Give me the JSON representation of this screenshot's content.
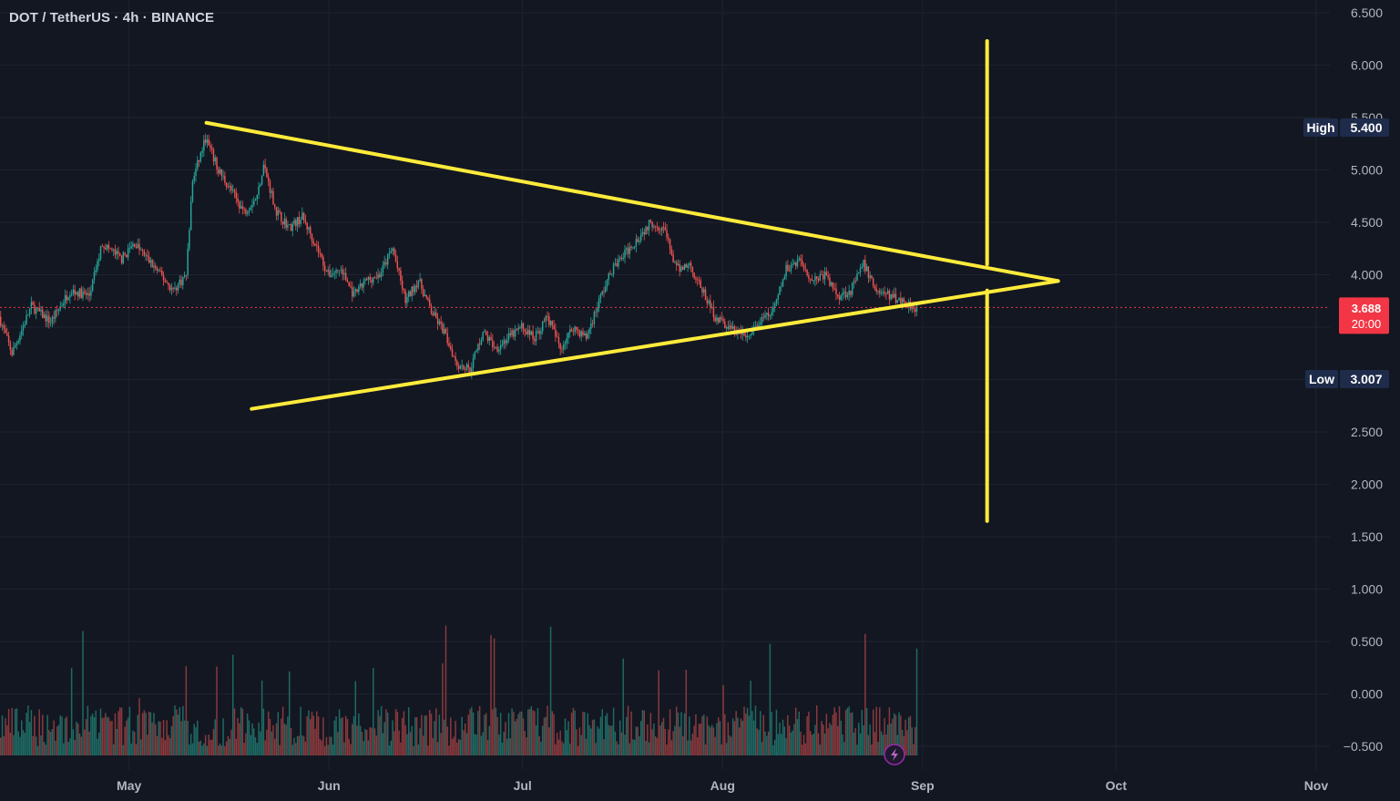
{
  "header": {
    "title": "DOT / TetherUS · 4h · BINANCE"
  },
  "colors": {
    "background": "#131722",
    "grid": "#1f2330",
    "up": "#26a69a",
    "down": "#ef5350",
    "up_volume": "#1f6b64",
    "down_volume": "#8a3a3d",
    "drawing": "#ffeb3b",
    "badge": "#1e2b4a",
    "last_price": "#f23645",
    "axis_text": "#b2b5be"
  },
  "icons": {
    "lightning": "lightning-icon"
  },
  "chart_data": {
    "type": "candlestick",
    "title": "DOT / TetherUS · 4h · BINANCE",
    "y_axis": {
      "ticks": [
        "6.500",
        "6.000",
        "5.500",
        "5.000",
        "4.500",
        "4.000",
        "3.500",
        "3.000",
        "2.500",
        "2.000",
        "1.500",
        "1.000",
        "0.500",
        "0.000",
        "−0.500"
      ],
      "ylim": [
        -0.6,
        6.6
      ]
    },
    "x_axis": {
      "ticks": [
        "May",
        "Jun",
        "Jul",
        "Aug",
        "Sep",
        "Oct",
        "Nov"
      ],
      "range": [
        "2024-04-11",
        "2024-11-14"
      ]
    },
    "high": {
      "label": "High",
      "value": "5.400"
    },
    "low": {
      "label": "Low",
      "value": "3.007"
    },
    "last": {
      "value": "3.688",
      "countdown": "20:00"
    },
    "price_path": [
      [
        "2024-04-11",
        3.6
      ],
      [
        "2024-04-13",
        3.25
      ],
      [
        "2024-04-16",
        3.7
      ],
      [
        "2024-04-19",
        3.55
      ],
      [
        "2024-04-22",
        3.85
      ],
      [
        "2024-04-25",
        3.8
      ],
      [
        "2024-04-27",
        4.3
      ],
      [
        "2024-04-30",
        4.15
      ],
      [
        "2024-05-02",
        4.3
      ],
      [
        "2024-05-04",
        4.15
      ],
      [
        "2024-05-06",
        4.0
      ],
      [
        "2024-05-08",
        3.85
      ],
      [
        "2024-05-10",
        4.0
      ],
      [
        "2024-05-11",
        4.9
      ],
      [
        "2024-05-13",
        5.3
      ],
      [
        "2024-05-15",
        5.0
      ],
      [
        "2024-05-17",
        4.8
      ],
      [
        "2024-05-19",
        4.6
      ],
      [
        "2024-05-21",
        4.75
      ],
      [
        "2024-05-22",
        5.05
      ],
      [
        "2024-05-24",
        4.6
      ],
      [
        "2024-05-26",
        4.45
      ],
      [
        "2024-05-28",
        4.55
      ],
      [
        "2024-05-30",
        4.3
      ],
      [
        "2024-06-01",
        4.0
      ],
      [
        "2024-06-03",
        4.05
      ],
      [
        "2024-06-05",
        3.8
      ],
      [
        "2024-06-07",
        3.95
      ],
      [
        "2024-06-09",
        4.0
      ],
      [
        "2024-06-11",
        4.25
      ],
      [
        "2024-06-13",
        3.75
      ],
      [
        "2024-06-15",
        3.95
      ],
      [
        "2024-06-17",
        3.65
      ],
      [
        "2024-06-19",
        3.45
      ],
      [
        "2024-06-21",
        3.15
      ],
      [
        "2024-06-23",
        3.1
      ],
      [
        "2024-06-25",
        3.45
      ],
      [
        "2024-06-27",
        3.3
      ],
      [
        "2024-06-29",
        3.4
      ],
      [
        "2024-07-01",
        3.5
      ],
      [
        "2024-07-03",
        3.4
      ],
      [
        "2024-07-05",
        3.6
      ],
      [
        "2024-07-07",
        3.3
      ],
      [
        "2024-07-09",
        3.5
      ],
      [
        "2024-07-11",
        3.4
      ],
      [
        "2024-07-13",
        3.75
      ],
      [
        "2024-07-15",
        4.05
      ],
      [
        "2024-07-17",
        4.2
      ],
      [
        "2024-07-19",
        4.35
      ],
      [
        "2024-07-21",
        4.5
      ],
      [
        "2024-07-23",
        4.45
      ],
      [
        "2024-07-25",
        4.05
      ],
      [
        "2024-07-27",
        4.1
      ],
      [
        "2024-07-29",
        3.85
      ],
      [
        "2024-07-31",
        3.6
      ],
      [
        "2024-08-02",
        3.5
      ],
      [
        "2024-08-05",
        3.4
      ],
      [
        "2024-08-07",
        3.55
      ],
      [
        "2024-08-09",
        3.65
      ],
      [
        "2024-08-11",
        4.05
      ],
      [
        "2024-08-13",
        4.15
      ],
      [
        "2024-08-15",
        3.95
      ],
      [
        "2024-08-17",
        4.0
      ],
      [
        "2024-08-19",
        3.8
      ],
      [
        "2024-08-21",
        3.85
      ],
      [
        "2024-08-23",
        4.1
      ],
      [
        "2024-08-25",
        3.85
      ],
      [
        "2024-08-27",
        3.8
      ],
      [
        "2024-08-29",
        3.75
      ],
      [
        "2024-08-31",
        3.69
      ]
    ],
    "drawings": [
      {
        "type": "trendline",
        "from": [
          "2024-05-13",
          5.45
        ],
        "to": [
          "2024-09-22",
          3.94
        ]
      },
      {
        "type": "trendline",
        "from": [
          "2024-05-20",
          2.72
        ],
        "to": [
          "2024-09-22",
          3.94
        ]
      },
      {
        "type": "vertical",
        "date": "2024-09-11",
        "from": 4.1,
        "to": 6.23
      },
      {
        "type": "vertical",
        "date": "2024-09-11",
        "from": 3.85,
        "to": 1.65
      }
    ]
  }
}
